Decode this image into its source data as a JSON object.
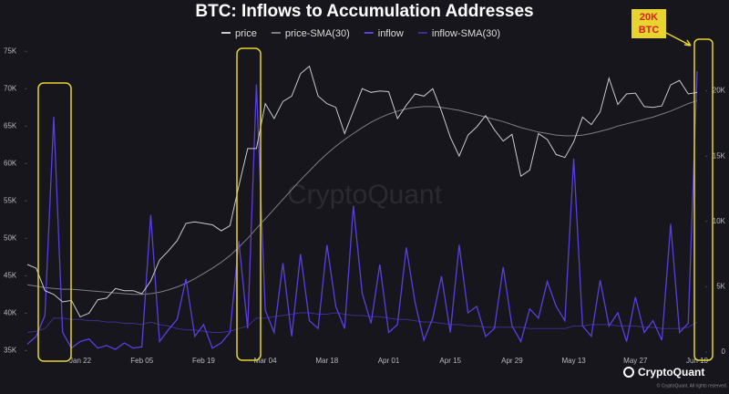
{
  "chart_data": {
    "type": "line",
    "title": "BTC: Inflows to Accumulation Addresses",
    "categories": [
      null,
      null,
      null,
      null,
      null,
      null,
      "Jan 22",
      null,
      null,
      null,
      null,
      null,
      null,
      "Feb 05",
      null,
      null,
      null,
      null,
      null,
      null,
      "Feb 19",
      null,
      null,
      null,
      null,
      null,
      null,
      "Mar 04",
      null,
      null,
      null,
      null,
      null,
      null,
      "Mar 18",
      null,
      null,
      null,
      null,
      null,
      null,
      "Apr 01",
      null,
      null,
      null,
      null,
      null,
      null,
      "Apr 15",
      null,
      null,
      null,
      null,
      null,
      null,
      "Apr 29",
      null,
      null,
      null,
      null,
      null,
      null,
      "May 13",
      null,
      null,
      null,
      null,
      null,
      null,
      "May 27",
      null,
      null,
      null,
      null,
      null,
      null,
      "Jun 10"
    ],
    "series": [
      {
        "name": "price",
        "color": "#c9c9cf",
        "values": [
          46500,
          46000,
          43000,
          42500,
          41500,
          41700,
          39500,
          40000,
          41800,
          42000,
          43300,
          43000,
          43000,
          42600,
          44300,
          47100,
          48300,
          49700,
          52000,
          52200,
          52000,
          51800,
          51000,
          51700,
          57000,
          62000,
          62000,
          68000,
          66000,
          68300,
          69000,
          72000,
          73000,
          69000,
          68000,
          67500,
          64000,
          67000,
          70000,
          69500,
          69700,
          69600,
          66000,
          67800,
          69300,
          69000,
          70000,
          67000,
          63500,
          61000,
          63800,
          64900,
          66400,
          64500,
          63000,
          63900,
          58300,
          59100,
          64000,
          63200,
          61200,
          60800,
          62900,
          66200,
          65200,
          66900,
          71400,
          67900,
          69300,
          69400,
          67600,
          67500,
          67700,
          70500,
          71100,
          69300,
          69500
        ]
      },
      {
        "name": "price-SMA(30)",
        "color": "#7d7d85",
        "values": [
          43800,
          43600,
          43400,
          43300,
          43200,
          43200,
          43100,
          43000,
          42900,
          42800,
          42700,
          42600,
          42500,
          42500,
          42600,
          42800,
          43100,
          43500,
          44000,
          44600,
          45300,
          46000,
          46800,
          47700,
          48800,
          50000,
          51300,
          52600,
          53900,
          55200,
          56500,
          57800,
          59000,
          60200,
          61300,
          62300,
          63200,
          64000,
          64800,
          65500,
          66100,
          66600,
          67000,
          67300,
          67500,
          67600,
          67600,
          67500,
          67300,
          67100,
          66800,
          66500,
          66200,
          65900,
          65600,
          65200,
          64800,
          64500,
          64200,
          64000,
          63800,
          63700,
          63700,
          63800,
          64000,
          64300,
          64600,
          65000,
          65300,
          65600,
          65900,
          66200,
          66600,
          67000,
          67500,
          68000,
          68400
        ]
      },
      {
        "name": "inflow",
        "color": "#5a3fe0",
        "axis": "y2",
        "values": [
          600,
          1200,
          2800,
          18000,
          1500,
          300,
          800,
          1000,
          300,
          500,
          200,
          700,
          300,
          400,
          10500,
          800,
          1700,
          2500,
          5600,
          1200,
          2100,
          300,
          700,
          1500,
          8500,
          1800,
          20500,
          3200,
          1500,
          6800,
          1200,
          7500,
          2400,
          1800,
          8200,
          3500,
          1800,
          11200,
          4500,
          2200,
          6700,
          1500,
          2100,
          8000,
          3800,
          900,
          2600,
          5800,
          1500,
          8200,
          3000,
          3500,
          1200,
          1800,
          6500,
          2000,
          800,
          3300,
          2600,
          5400,
          3500,
          2400,
          14800,
          2000,
          1200,
          5500,
          2000,
          3000,
          800,
          4200,
          1500,
          2400,
          900,
          9800,
          1500,
          2200,
          21500
        ]
      },
      {
        "name": "inflow-SMA(30)",
        "color": "#3b2f8f",
        "axis": "y2",
        "values": [
          1500,
          1600,
          1800,
          2600,
          2600,
          2500,
          2500,
          2400,
          2400,
          2300,
          2300,
          2200,
          2200,
          2100,
          2300,
          2100,
          2000,
          1800,
          1700,
          1700,
          1600,
          1500,
          1500,
          1600,
          1800,
          2000,
          2600,
          2600,
          2700,
          2800,
          2900,
          3000,
          3000,
          2900,
          2900,
          3000,
          2900,
          2800,
          2800,
          2700,
          2700,
          2600,
          2500,
          2500,
          2400,
          2300,
          2300,
          2200,
          2100,
          2100,
          2000,
          2000,
          1900,
          1900,
          1900,
          1900,
          1900,
          1800,
          1800,
          1800,
          1800,
          1800,
          2000,
          2000,
          2100,
          2100,
          2100,
          2000,
          2000,
          2000,
          1900,
          1900,
          1800,
          1800,
          1800,
          1900,
          2300
        ]
      }
    ],
    "ylim": [
      34800,
      76000
    ],
    "yticks": [
      {
        "value": 35000,
        "label": "35K"
      },
      {
        "value": 40000,
        "label": "40K"
      },
      {
        "value": 45000,
        "label": "45K"
      },
      {
        "value": 50000,
        "label": "50K"
      },
      {
        "value": 55000,
        "label": "55K"
      },
      {
        "value": 60000,
        "label": "60K"
      },
      {
        "value": 65000,
        "label": "65K"
      },
      {
        "value": 70000,
        "label": "70K"
      },
      {
        "value": 75000,
        "label": "75K"
      }
    ],
    "y2lim": [
      0,
      23600
    ],
    "y2ticks": [
      0,
      {
        "value": 5000,
        "label": "5K"
      },
      {
        "value": 10000,
        "label": "10K"
      },
      {
        "value": 15000,
        "label": "15K"
      },
      {
        "value": 20000,
        "label": "20K"
      }
    ],
    "annotation": [
      "20K",
      "BTC"
    ],
    "watermark": "CryptoQuant",
    "source": "CryptoQuant",
    "copyright": "© CryptoQuant. All rights reserved."
  }
}
